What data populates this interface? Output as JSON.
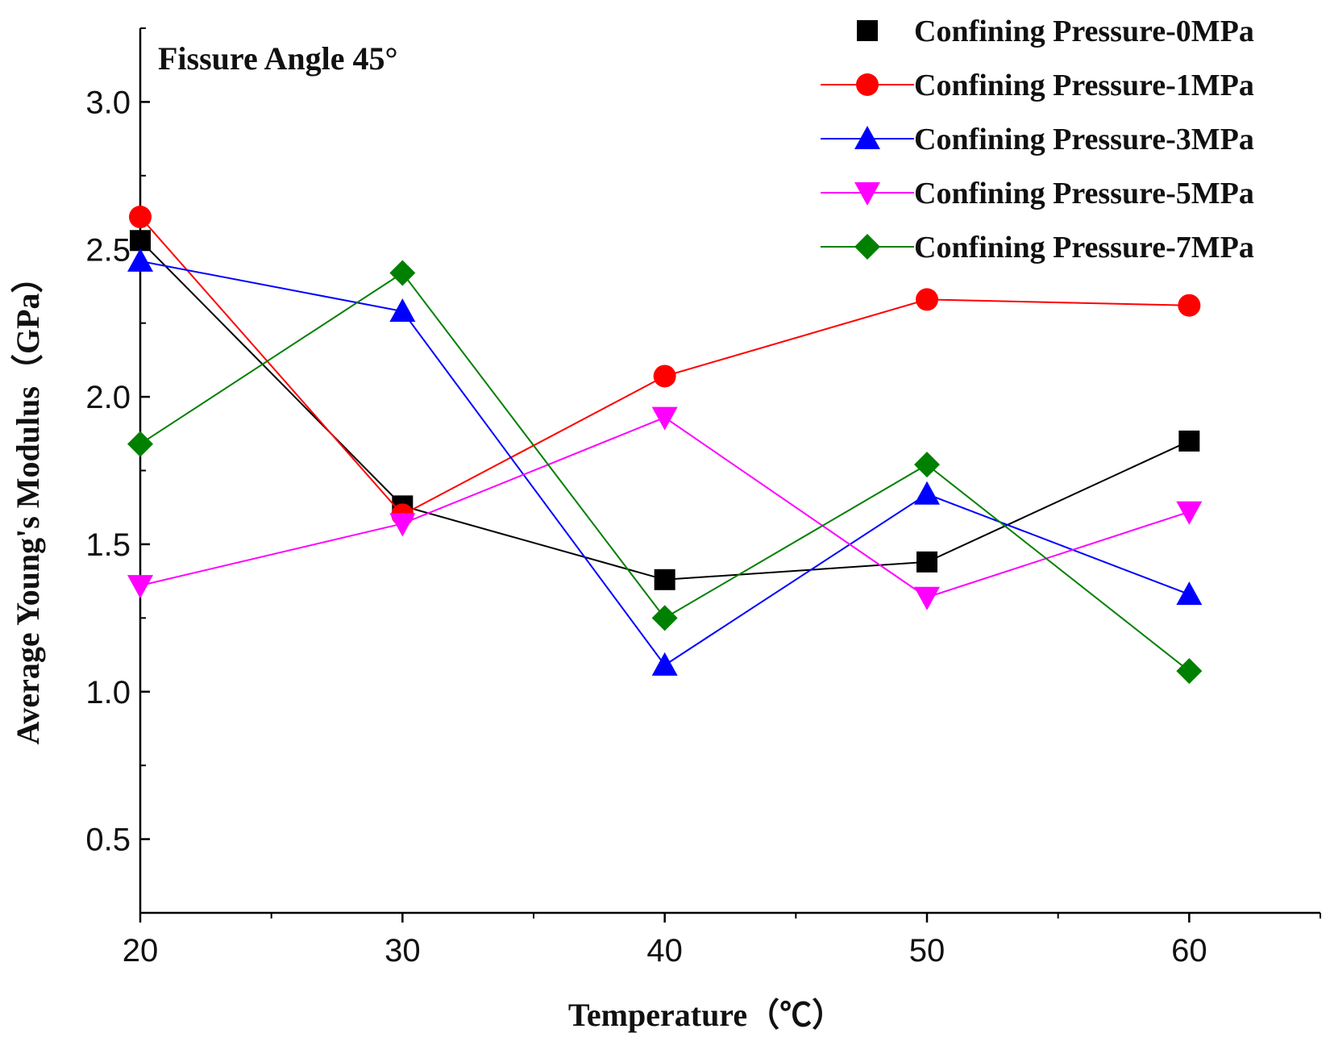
{
  "chart_data": {
    "type": "line",
    "annotation": "Fissure Angle 45°",
    "xlabel": "Temperature（℃）",
    "ylabel": "Average Young's Modulus（GPa）",
    "x": [
      20,
      30,
      40,
      50,
      60
    ],
    "xlim": [
      20,
      65
    ],
    "ylim": [
      0.25,
      3.25
    ],
    "xticks": [
      20,
      30,
      40,
      50,
      60
    ],
    "xtick_labels": [
      "20",
      "30",
      "40",
      "50",
      "60"
    ],
    "yticks": [
      0.5,
      1.0,
      1.5,
      2.0,
      2.5,
      3.0
    ],
    "ytick_labels": [
      "0.5",
      "1.0",
      "1.5",
      "2.0",
      "2.5",
      "3.0"
    ],
    "legend_position": "top-right",
    "series": [
      {
        "name": "Confining Pressure-0MPa",
        "color": "#000000",
        "marker": "square",
        "values": [
          2.53,
          1.63,
          1.38,
          1.44,
          1.85
        ]
      },
      {
        "name": "Confining Pressure-1MPa",
        "color": "#ff0000",
        "marker": "circle",
        "values": [
          2.61,
          1.6,
          2.07,
          2.33,
          2.31
        ]
      },
      {
        "name": "Confining Pressure-3MPa",
        "color": "#0000ff",
        "marker": "triangle-up",
        "values": [
          2.46,
          2.29,
          1.09,
          1.67,
          1.33
        ]
      },
      {
        "name": "Confining Pressure-5MPa",
        "color": "#ff00ff",
        "marker": "triangle-down",
        "values": [
          1.36,
          1.57,
          1.93,
          1.32,
          1.61
        ]
      },
      {
        "name": "Confining Pressure-7MPa",
        "color": "#008000",
        "marker": "diamond",
        "values": [
          1.84,
          2.42,
          1.25,
          1.77,
          1.07
        ]
      }
    ]
  }
}
